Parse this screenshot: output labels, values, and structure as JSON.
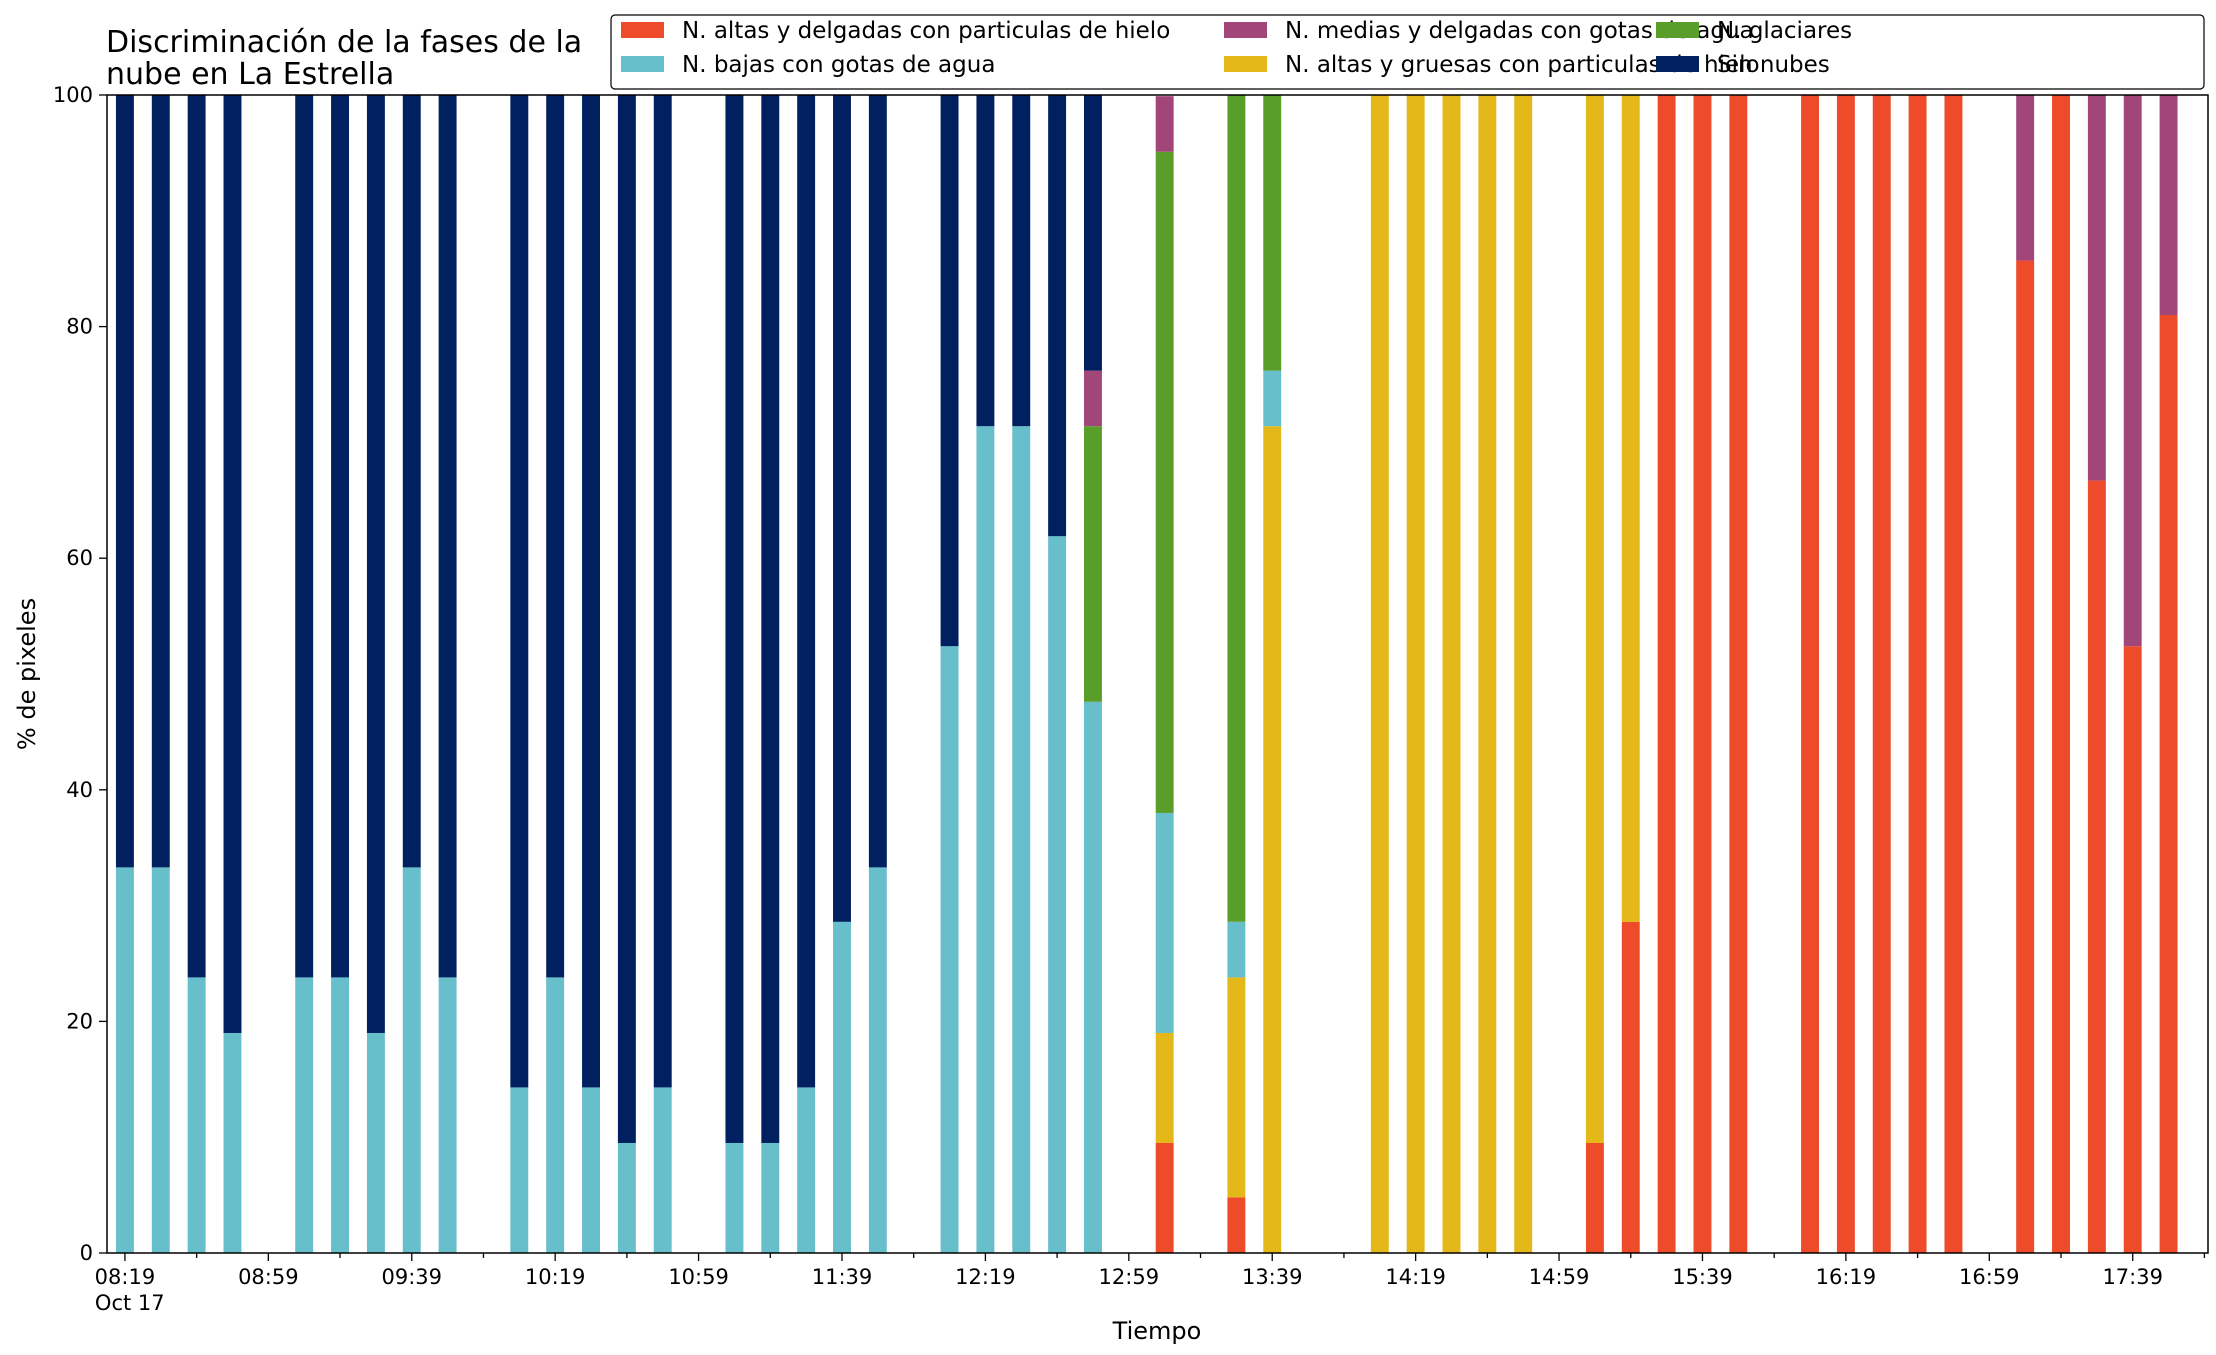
{
  "chart_data": {
    "type": "bar",
    "stacked": true,
    "title_lines": [
      "Discriminación de la fases de la",
      "nube en La Estrella"
    ],
    "xlabel": "Tiempo",
    "ylabel": "% de pixeles",
    "ylim": [
      0,
      100
    ],
    "yticks": [
      0,
      20,
      40,
      60,
      80,
      100
    ],
    "xlim": [
      "08:14",
      "18:00"
    ],
    "bar_interval_minutes": 10,
    "xticks": [
      {
        "time": "08:19",
        "label": "08:19",
        "sub": "Oct 17"
      },
      {
        "time": "08:59",
        "label": "08:59",
        "sub": ""
      },
      {
        "time": "09:39",
        "label": "09:39",
        "sub": ""
      },
      {
        "time": "10:19",
        "label": "10:19",
        "sub": ""
      },
      {
        "time": "10:59",
        "label": "10:59",
        "sub": ""
      },
      {
        "time": "11:39",
        "label": "11:39",
        "sub": ""
      },
      {
        "time": "12:19",
        "label": "12:19",
        "sub": ""
      },
      {
        "time": "12:59",
        "label": "12:59",
        "sub": ""
      },
      {
        "time": "13:39",
        "label": "13:39",
        "sub": ""
      },
      {
        "time": "14:19",
        "label": "14:19",
        "sub": ""
      },
      {
        "time": "14:59",
        "label": "14:59",
        "sub": ""
      },
      {
        "time": "15:39",
        "label": "15:39",
        "sub": ""
      },
      {
        "time": "16:19",
        "label": "16:19",
        "sub": ""
      },
      {
        "time": "16:59",
        "label": "16:59",
        "sub": ""
      },
      {
        "time": "17:39",
        "label": "17:39",
        "sub": ""
      }
    ],
    "legend_position": "top-right",
    "legend_order": [
      "N. altas y delgadas con particulas de hielo",
      "N. bajas con gotas de agua",
      "N. medias y delgadas con gotas de agua",
      "N. altas y gruesas con particulas de hielo",
      "N. glaciares",
      "Sin nubes"
    ],
    "stack_order": [
      "N. altas y delgadas con particulas de hielo",
      "N. altas y gruesas con particulas de hielo",
      "N. bajas con gotas de agua",
      "N. glaciares",
      "N. medias y delgadas con gotas de agua",
      "Sin nubes"
    ],
    "series": [
      {
        "name": "N. altas y delgadas con particulas de hielo",
        "color": "#EE4B2B"
      },
      {
        "name": "N. altas y gruesas con particulas de hielo",
        "color": "#E4B818"
      },
      {
        "name": "N. bajas con gotas de agua",
        "color": "#67BFCB"
      },
      {
        "name": "N. glaciares",
        "color": "#5A9E2A"
      },
      {
        "name": "N. medias y delgadas con gotas de agua",
        "color": "#A24579"
      },
      {
        "name": "Sin nubes",
        "color": "#00205F"
      }
    ],
    "bars": [
      {
        "time": "08:19",
        "values": [
          0,
          0,
          33.3,
          0,
          0,
          66.7
        ]
      },
      {
        "time": "08:29",
        "values": [
          0,
          0,
          33.3,
          0,
          0,
          66.7
        ]
      },
      {
        "time": "08:39",
        "values": [
          0,
          0,
          23.8,
          0,
          0,
          76.2
        ]
      },
      {
        "time": "08:49",
        "values": [
          0,
          0,
          19.0,
          0,
          0,
          81.0
        ]
      },
      {
        "time": "09:09",
        "values": [
          0,
          0,
          23.8,
          0,
          0,
          76.2
        ]
      },
      {
        "time": "09:19",
        "values": [
          0,
          0,
          23.8,
          0,
          0,
          76.2
        ]
      },
      {
        "time": "09:29",
        "values": [
          0,
          0,
          19.0,
          0,
          0,
          81.0
        ]
      },
      {
        "time": "09:39",
        "values": [
          0,
          0,
          33.3,
          0,
          0,
          66.7
        ]
      },
      {
        "time": "09:49",
        "values": [
          0,
          0,
          23.8,
          0,
          0,
          76.2
        ]
      },
      {
        "time": "10:09",
        "values": [
          0,
          0,
          14.3,
          0,
          0,
          85.7
        ]
      },
      {
        "time": "10:19",
        "values": [
          0,
          0,
          23.8,
          0,
          0,
          76.2
        ]
      },
      {
        "time": "10:29",
        "values": [
          0,
          0,
          14.3,
          0,
          0,
          85.7
        ]
      },
      {
        "time": "10:39",
        "values": [
          0,
          0,
          9.5,
          0,
          0,
          90.5
        ]
      },
      {
        "time": "10:49",
        "values": [
          0,
          0,
          14.3,
          0,
          0,
          85.7
        ]
      },
      {
        "time": "11:09",
        "values": [
          0,
          0,
          9.5,
          0,
          0,
          90.5
        ]
      },
      {
        "time": "11:19",
        "values": [
          0,
          0,
          9.5,
          0,
          0,
          90.5
        ]
      },
      {
        "time": "11:29",
        "values": [
          0,
          0,
          14.3,
          0,
          0,
          85.7
        ]
      },
      {
        "time": "11:39",
        "values": [
          0,
          0,
          28.6,
          0,
          0,
          71.4
        ]
      },
      {
        "time": "11:49",
        "values": [
          0,
          0,
          33.3,
          0,
          0,
          66.7
        ]
      },
      {
        "time": "12:09",
        "values": [
          0,
          0,
          52.4,
          0,
          0,
          47.6
        ]
      },
      {
        "time": "12:19",
        "values": [
          0,
          0,
          71.4,
          0,
          0,
          28.6
        ]
      },
      {
        "time": "12:29",
        "values": [
          0,
          0,
          71.4,
          0,
          0,
          28.6
        ]
      },
      {
        "time": "12:39",
        "values": [
          0,
          0,
          61.9,
          0,
          0,
          38.1
        ]
      },
      {
        "time": "12:49",
        "values": [
          0,
          0,
          47.6,
          23.8,
          4.8,
          23.8
        ]
      },
      {
        "time": "13:09",
        "values": [
          9.5,
          9.5,
          19.0,
          57.1,
          4.8,
          0
        ]
      },
      {
        "time": "13:29",
        "values": [
          4.8,
          19.0,
          4.8,
          71.4,
          0,
          0
        ]
      },
      {
        "time": "13:39",
        "values": [
          0,
          71.4,
          4.8,
          23.8,
          0,
          0
        ]
      },
      {
        "time": "14:09",
        "values": [
          0,
          100,
          0,
          0,
          0,
          0
        ]
      },
      {
        "time": "14:19",
        "values": [
          0,
          100,
          0,
          0,
          0,
          0
        ]
      },
      {
        "time": "14:29",
        "values": [
          0,
          100,
          0,
          0,
          0,
          0
        ]
      },
      {
        "time": "14:39",
        "values": [
          0,
          100,
          0,
          0,
          0,
          0
        ]
      },
      {
        "time": "14:49",
        "values": [
          0,
          100,
          0,
          0,
          0,
          0
        ]
      },
      {
        "time": "15:09",
        "values": [
          9.5,
          90.5,
          0,
          0,
          0,
          0
        ]
      },
      {
        "time": "15:19",
        "values": [
          28.6,
          71.4,
          0,
          0,
          0,
          0
        ]
      },
      {
        "time": "15:29",
        "values": [
          100,
          0,
          0,
          0,
          0,
          0
        ]
      },
      {
        "time": "15:39",
        "values": [
          100,
          0,
          0,
          0,
          0,
          0
        ]
      },
      {
        "time": "15:49",
        "values": [
          100,
          0,
          0,
          0,
          0,
          0
        ]
      },
      {
        "time": "16:09",
        "values": [
          100,
          0,
          0,
          0,
          0,
          0
        ]
      },
      {
        "time": "16:19",
        "values": [
          100,
          0,
          0,
          0,
          0,
          0
        ]
      },
      {
        "time": "16:29",
        "values": [
          100,
          0,
          0,
          0,
          0,
          0
        ]
      },
      {
        "time": "16:39",
        "values": [
          100,
          0,
          0,
          0,
          0,
          0
        ]
      },
      {
        "time": "16:49",
        "values": [
          100,
          0,
          0,
          0,
          0,
          0
        ]
      },
      {
        "time": "17:09",
        "values": [
          85.7,
          0,
          0,
          0,
          14.3,
          0
        ]
      },
      {
        "time": "17:19",
        "values": [
          100,
          0,
          0,
          0,
          0,
          0
        ]
      },
      {
        "time": "17:29",
        "values": [
          66.7,
          0,
          0,
          0,
          33.3,
          0
        ]
      },
      {
        "time": "17:39",
        "values": [
          52.4,
          0,
          0,
          0,
          47.6,
          0
        ]
      },
      {
        "time": "17:49",
        "values": [
          81.0,
          0,
          0,
          0,
          19.0,
          0
        ]
      }
    ]
  }
}
